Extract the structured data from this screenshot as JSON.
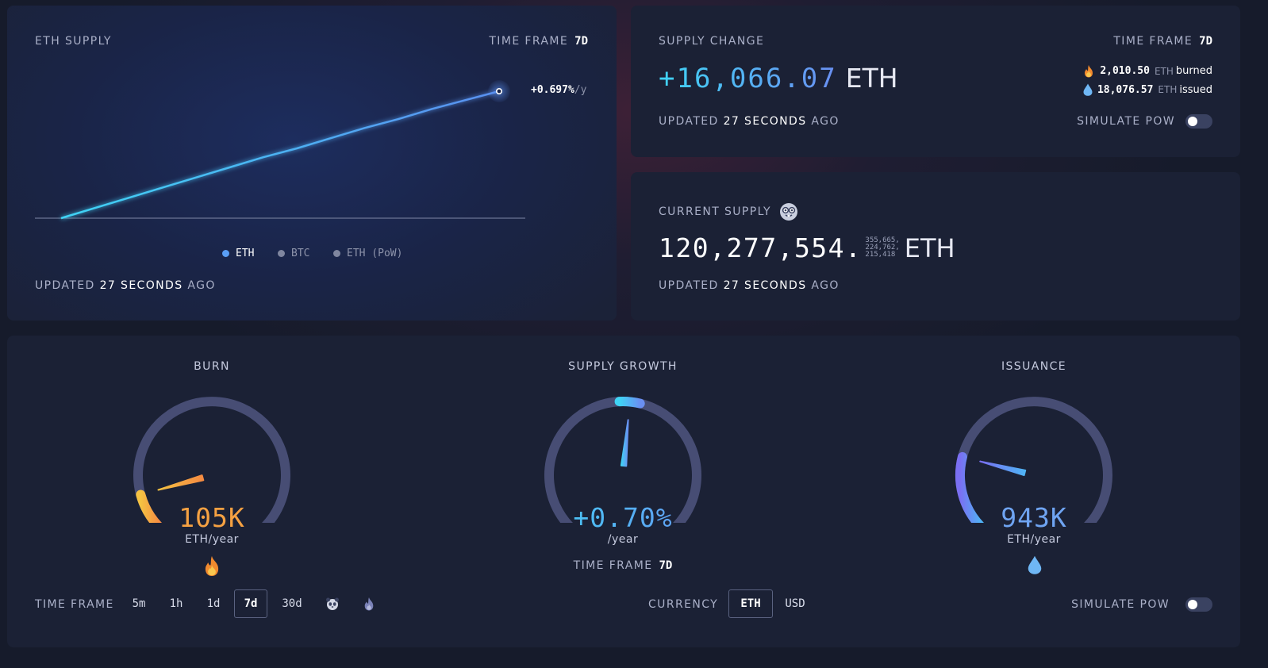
{
  "eth_supply_card": {
    "title": "ETH SUPPLY",
    "time_frame_label": "TIME FRAME",
    "time_frame_value": "7d",
    "growth_label": "+0.697%",
    "growth_unit": "/y",
    "legend": [
      "ETH",
      "BTC",
      "ETH (PoW)"
    ],
    "updated_prefix": "UPDATED",
    "updated_value": "27 SECONDS",
    "updated_suffix": "AGO"
  },
  "chart_data": {
    "type": "line",
    "title": "ETH SUPPLY",
    "series": [
      {
        "name": "ETH",
        "values": [
          0,
          0.08,
          0.16,
          0.24,
          0.32,
          0.4,
          0.48,
          0.55,
          0.63,
          0.71,
          0.78,
          0.86,
          0.93,
          1.0
        ]
      }
    ],
    "legend": [
      "ETH",
      "BTC",
      "ETH (PoW)"
    ],
    "grid": false,
    "legend_placement": "bottom"
  },
  "supply_change_card": {
    "title": "SUPPLY CHANGE",
    "time_frame_label": "TIME FRAME",
    "time_frame_value": "7d",
    "amount": "+16,066.07",
    "unit": "ETH",
    "burned_value": "2,010.50",
    "burned_unit": "ETH",
    "burned_label": "burned",
    "issued_value": "18,076.57",
    "issued_unit": "ETH",
    "issued_label": "issued",
    "updated_prefix": "UPDATED",
    "updated_value": "27 SECONDS",
    "updated_suffix": "AGO",
    "simulate_label": "SIMULATE PoW"
  },
  "current_supply_card": {
    "title": "CURRENT SUPPLY",
    "integer": "120,277,554.",
    "decimals_line1": "355,665,",
    "decimals_line2": "224,762,",
    "decimals_line3": "215,418",
    "unit": "ETH",
    "updated_prefix": "UPDATED",
    "updated_value": "27 SECONDS",
    "updated_suffix": "AGO"
  },
  "gauges": {
    "burn": {
      "title": "BURN",
      "value": "105K",
      "unit": "ETH/year",
      "level": 0.11,
      "color": "#f5a142"
    },
    "supply_growth": {
      "title": "SUPPLY GROWTH",
      "value": "+0.70%",
      "unit": "/year",
      "time_frame_label": "TIME FRAME",
      "time_frame_value": "7d",
      "level": 0.52
    },
    "issuance": {
      "title": "ISSUANCE",
      "value": "943K",
      "unit": "ETH/year",
      "level": 0.22,
      "color": "#6fa4f2"
    }
  },
  "controls": {
    "time_frame_label": "TIME FRAME",
    "time_frames": [
      "5m",
      "1h",
      "1d",
      "7d",
      "30d"
    ],
    "active_time_frame": "7d",
    "currency_label": "CURRENCY",
    "currencies": [
      "ETH",
      "USD"
    ],
    "active_currency": "ETH",
    "simulate_label": "SIMULATE PoW"
  },
  "colors": {
    "accent_cyan": "#3fd4f5",
    "accent_blue": "#5a8ff0",
    "burn_orange": "#f5a142",
    "card_bg": "#1b2135"
  }
}
